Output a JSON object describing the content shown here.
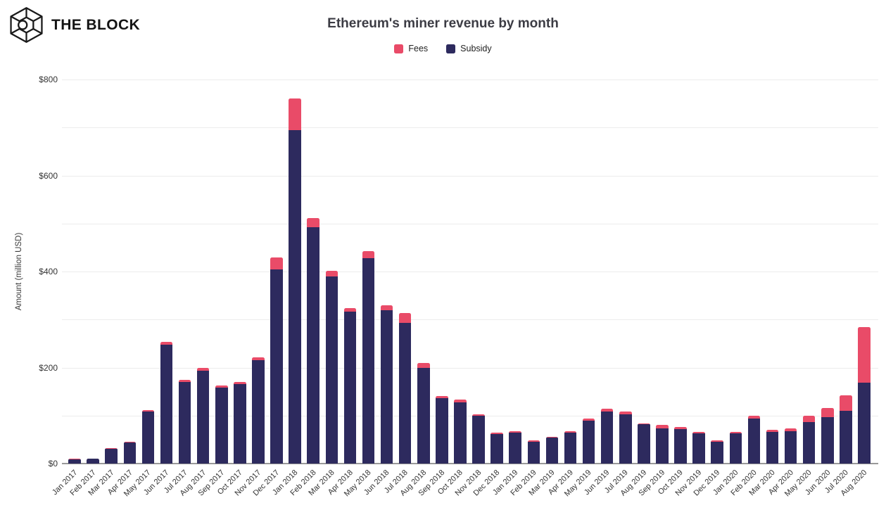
{
  "brand": {
    "name": "THE BLOCK"
  },
  "chart_data": {
    "type": "bar",
    "stacked": true,
    "title": "Ethereum's miner revenue by month",
    "xlabel": "",
    "ylabel": "Amount (million USD)",
    "ylim": [
      0,
      800
    ],
    "grid": true,
    "grid_step": 100,
    "legend_position": "top",
    "yticks": [
      {
        "value": 0,
        "label": "$0"
      },
      {
        "value": 200,
        "label": "$200"
      },
      {
        "value": 400,
        "label": "$400"
      },
      {
        "value": 600,
        "label": "$600"
      },
      {
        "value": 800,
        "label": "$800"
      }
    ],
    "categories": [
      "Jan 2017",
      "Feb 2017",
      "Mar 2017",
      "Apr 2017",
      "May 2017",
      "Jun 2017",
      "Jul 2017",
      "Aug 2017",
      "Sep 2017",
      "Oct 2017",
      "Nov 2017",
      "Dec 2017",
      "Jan 2018",
      "Feb 2018",
      "Mar 2018",
      "Apr 2018",
      "May 2018",
      "Jun 2018",
      "Jul 2018",
      "Aug 2018",
      "Sep 2018",
      "Oct 2018",
      "Nov 2018",
      "Dec 2018",
      "Jan 2019",
      "Feb 2019",
      "Mar 2019",
      "Apr 2019",
      "May 2019",
      "Jun 2019",
      "Jul 2019",
      "Aug 2019",
      "Sep 2019",
      "Oct 2019",
      "Nov 2019",
      "Dec 2019",
      "Jan 2020",
      "Feb 2020",
      "Mar 2020",
      "Apr 2020",
      "May 2020",
      "Jun 2020",
      "Jul 2020",
      "Aug 2020"
    ],
    "series": [
      {
        "name": "Subsidy",
        "color": "#2d2a5e",
        "values": [
          9.5,
          10.5,
          31,
          43.5,
          109,
          248,
          170,
          194,
          158,
          165,
          215,
          405,
          695,
          492,
          390,
          317,
          428,
          320,
          293,
          200,
          136,
          128,
          99,
          61,
          65,
          46,
          54,
          64,
          89,
          109,
          103,
          82,
          73,
          72,
          63,
          46,
          63,
          94,
          66,
          68,
          86,
          96,
          110,
          168
        ]
      },
      {
        "name": "Fees",
        "color": "#e94b68",
        "values": [
          0.5,
          0.5,
          1,
          1.5,
          3,
          6,
          5,
          6,
          5,
          5,
          6,
          25,
          65,
          19,
          12,
          7,
          15,
          9,
          20,
          10,
          5,
          5,
          4,
          3,
          3,
          2,
          2,
          3,
          5,
          6,
          5,
          2,
          7,
          4,
          3,
          2,
          3,
          5,
          5,
          5,
          13,
          20,
          32,
          117
        ]
      }
    ]
  }
}
